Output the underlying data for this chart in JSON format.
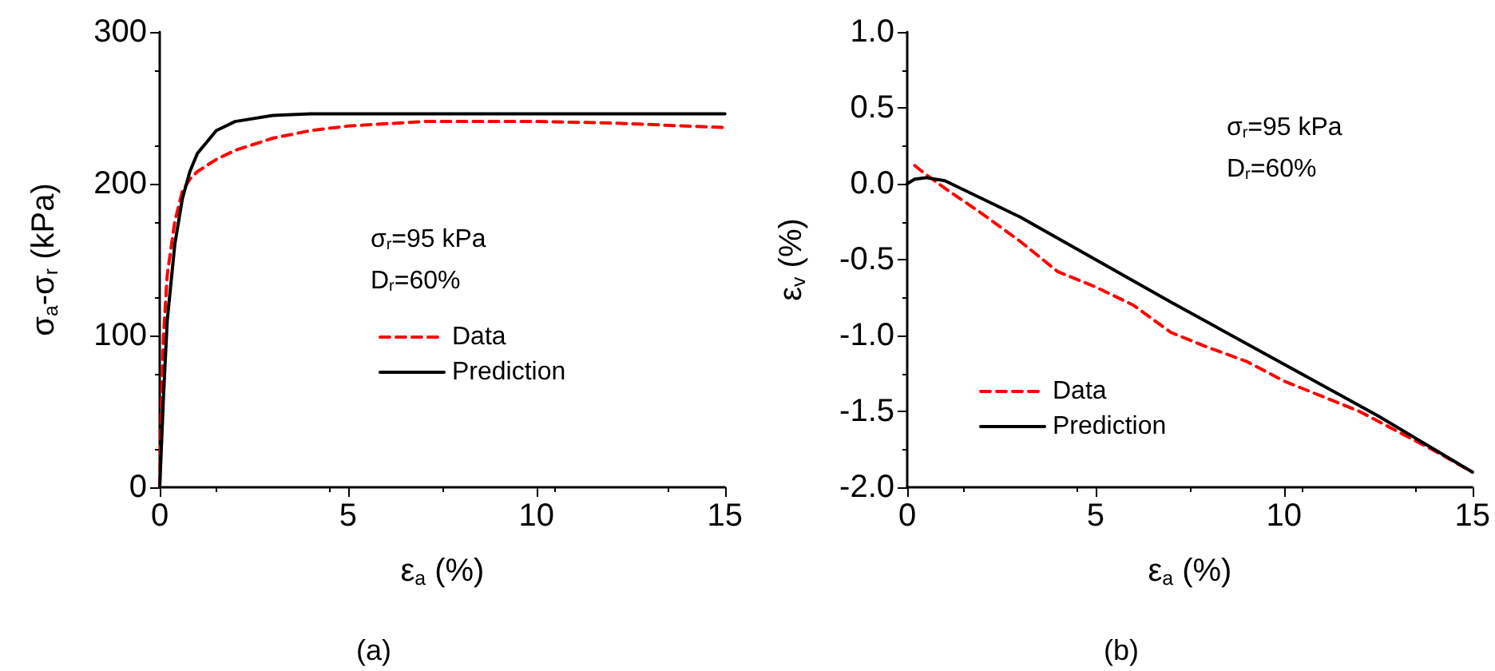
{
  "chart_data": [
    {
      "type": "line",
      "xlabel": "ε$_{a}$ (%)",
      "ylabel": "σ$_{a}$-σ$_{r}$ (kPa)",
      "xlim": [
        0,
        15
      ],
      "xticks": [
        0,
        5,
        10,
        15
      ],
      "ylim": [
        0,
        300
      ],
      "yticks": [
        0,
        100,
        200,
        300
      ],
      "grid": false,
      "legend": "right",
      "marker": "none",
      "annotations": [
        "σ$_{r}$=95 kPa",
        "D$_{r}$=60%",
        "(a)"
      ],
      "series": [
        {
          "name": "Data",
          "color": "#ff0000",
          "line_style": "dashed",
          "x": [
            0,
            0.05,
            0.1,
            0.2,
            0.4,
            0.6,
            0.8,
            1,
            1.5,
            2,
            3,
            4,
            5,
            7,
            10,
            12,
            15
          ],
          "values": [
            0,
            60,
            100,
            140,
            175,
            195,
            203,
            208,
            216,
            222,
            230,
            235,
            238,
            241,
            241,
            240,
            237
          ]
        },
        {
          "name": "Prediction",
          "color": "#000000",
          "line_style": "solid",
          "x": [
            0,
            0.1,
            0.2,
            0.4,
            0.6,
            0.8,
            1,
            1.5,
            2,
            3,
            4,
            5,
            15
          ],
          "values": [
            0,
            60,
            110,
            160,
            190,
            208,
            220,
            235,
            241,
            245,
            246,
            246,
            246
          ]
        }
      ]
    },
    {
      "type": "line",
      "xlabel": "ε$_{a}$ (%)",
      "ylabel": "ε$_{v}$ (%)",
      "xlim": [
        0,
        15
      ],
      "xticks": [
        0,
        5,
        10,
        15
      ],
      "ylim": [
        -2,
        1
      ],
      "yticks": [
        {
          "value": -2,
          "label": "-2.0"
        },
        {
          "value": -1.5,
          "label": "-1.5"
        },
        {
          "value": -1,
          "label": "-1.0"
        },
        {
          "value": -0.5,
          "label": "-0.5"
        },
        {
          "value": 0,
          "label": "0.0"
        },
        {
          "value": 0.5,
          "label": "0.5"
        },
        {
          "value": 1,
          "label": "1.0"
        }
      ],
      "grid": false,
      "legend": "bottom left",
      "marker": "none",
      "annotations": [
        "σ$_{r}$=95 kPa",
        "D$_{r}$=60%",
        "(b)"
      ],
      "series": [
        {
          "name": "Data",
          "color": "#ff0000",
          "line_style": "dashed",
          "x": [
            0.2,
            0.5,
            1,
            2,
            3,
            4,
            5,
            6,
            7,
            8,
            9,
            10,
            12,
            14,
            15
          ],
          "values": [
            0.12,
            0.06,
            -0.03,
            -0.2,
            -0.38,
            -0.58,
            -0.68,
            -0.8,
            -0.98,
            -1.08,
            -1.17,
            -1.3,
            -1.5,
            -1.76,
            -1.9
          ]
        },
        {
          "name": "Prediction",
          "color": "#000000",
          "line_style": "solid",
          "x": [
            0,
            0.2,
            0.5,
            1,
            2,
            3,
            5,
            7,
            10,
            12.5,
            15
          ],
          "values": [
            0,
            0.03,
            0.04,
            0.02,
            -0.1,
            -0.22,
            -0.5,
            -0.78,
            -1.19,
            -1.53,
            -1.9
          ]
        }
      ]
    }
  ]
}
